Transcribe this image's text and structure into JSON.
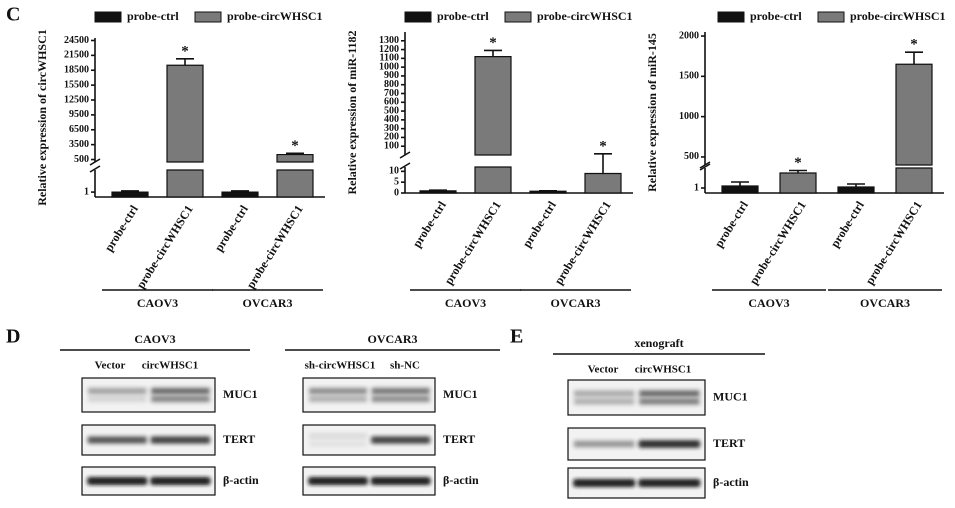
{
  "panel_labels": [
    "C",
    "D",
    "E"
  ],
  "chart_data": [
    {
      "type": "bar",
      "y_label": "Relative expression of circWHSC1",
      "categories": [
        "CAOV3",
        "OVCAR3"
      ],
      "series": [
        {
          "name": "probe-ctrl",
          "color": "#111111",
          "values": [
            1,
            1
          ],
          "errors": [
            0.05,
            0.05
          ]
        },
        {
          "name": "probe-circWHSC1",
          "color": "#7a7a7a",
          "values": [
            19500,
            1500
          ],
          "errors": [
            1300,
            250
          ],
          "annotations": [
            "*",
            "*"
          ]
        }
      ],
      "segments": [
        {
          "ylim": [
            0.8,
            1.9
          ],
          "yticks": [
            1
          ]
        },
        {
          "ylim": [
            0,
            25000
          ],
          "yticks": [
            500,
            3500,
            6500,
            9500,
            12500,
            15500,
            18500,
            21500,
            24500
          ]
        }
      ]
    },
    {
      "type": "bar",
      "y_label": "Relative expression of miR-1182",
      "categories": [
        "CAOV3",
        "OVCAR3"
      ],
      "series": [
        {
          "name": "probe-ctrl",
          "color": "#111111",
          "values": [
            1,
            0.8
          ],
          "errors": [
            0.3,
            0.2
          ]
        },
        {
          "name": "probe-circWHSC1",
          "color": "#7a7a7a",
          "values": [
            1120,
            9
          ],
          "errors": [
            70,
            4
          ],
          "annotations": [
            "*",
            "*"
          ]
        }
      ],
      "segments": [
        {
          "ylim": [
            0,
            12
          ],
          "yticks": [
            0,
            5,
            10
          ]
        },
        {
          "ylim": [
            0,
            1400
          ],
          "yticks": [
            100,
            200,
            300,
            400,
            500,
            600,
            700,
            800,
            900,
            1000,
            1100,
            1200,
            1300
          ]
        }
      ]
    },
    {
      "type": "bar",
      "y_label": "Relative expression of miR-145",
      "categories": [
        "CAOV3",
        "OVCAR3"
      ],
      "series": [
        {
          "name": "probe-ctrl",
          "color": "#111111",
          "values": [
            1.2,
            1.1
          ],
          "errors": [
            0.4,
            0.3
          ]
        },
        {
          "name": "probe-circWHSC1",
          "color": "#7a7a7a",
          "values": [
            2.5,
            1650
          ],
          "errors": [
            0.25,
            150
          ],
          "annotations": [
            "*",
            "*"
          ]
        }
      ],
      "segments": [
        {
          "ylim": [
            0.5,
            3
          ],
          "yticks": [
            1
          ]
        },
        {
          "ylim": [
            400,
            2050
          ],
          "yticks": [
            500,
            1000,
            1500,
            2000
          ]
        }
      ]
    }
  ],
  "blots": [
    {
      "title": "CAOV3",
      "lanes": [
        "Vector",
        "circWHSC1"
      ],
      "rows": [
        "MUC1",
        "TERT",
        "β-actin"
      ]
    },
    {
      "title": "OVCAR3",
      "lanes": [
        "sh-circWHSC1",
        "sh-NC"
      ],
      "rows": [
        "MUC1",
        "TERT",
        "β-actin"
      ]
    },
    {
      "title": "xenograft",
      "lanes": [
        "Vector",
        "circWHSC1"
      ],
      "rows": [
        "MUC1",
        "TERT",
        "β-actin"
      ]
    }
  ]
}
